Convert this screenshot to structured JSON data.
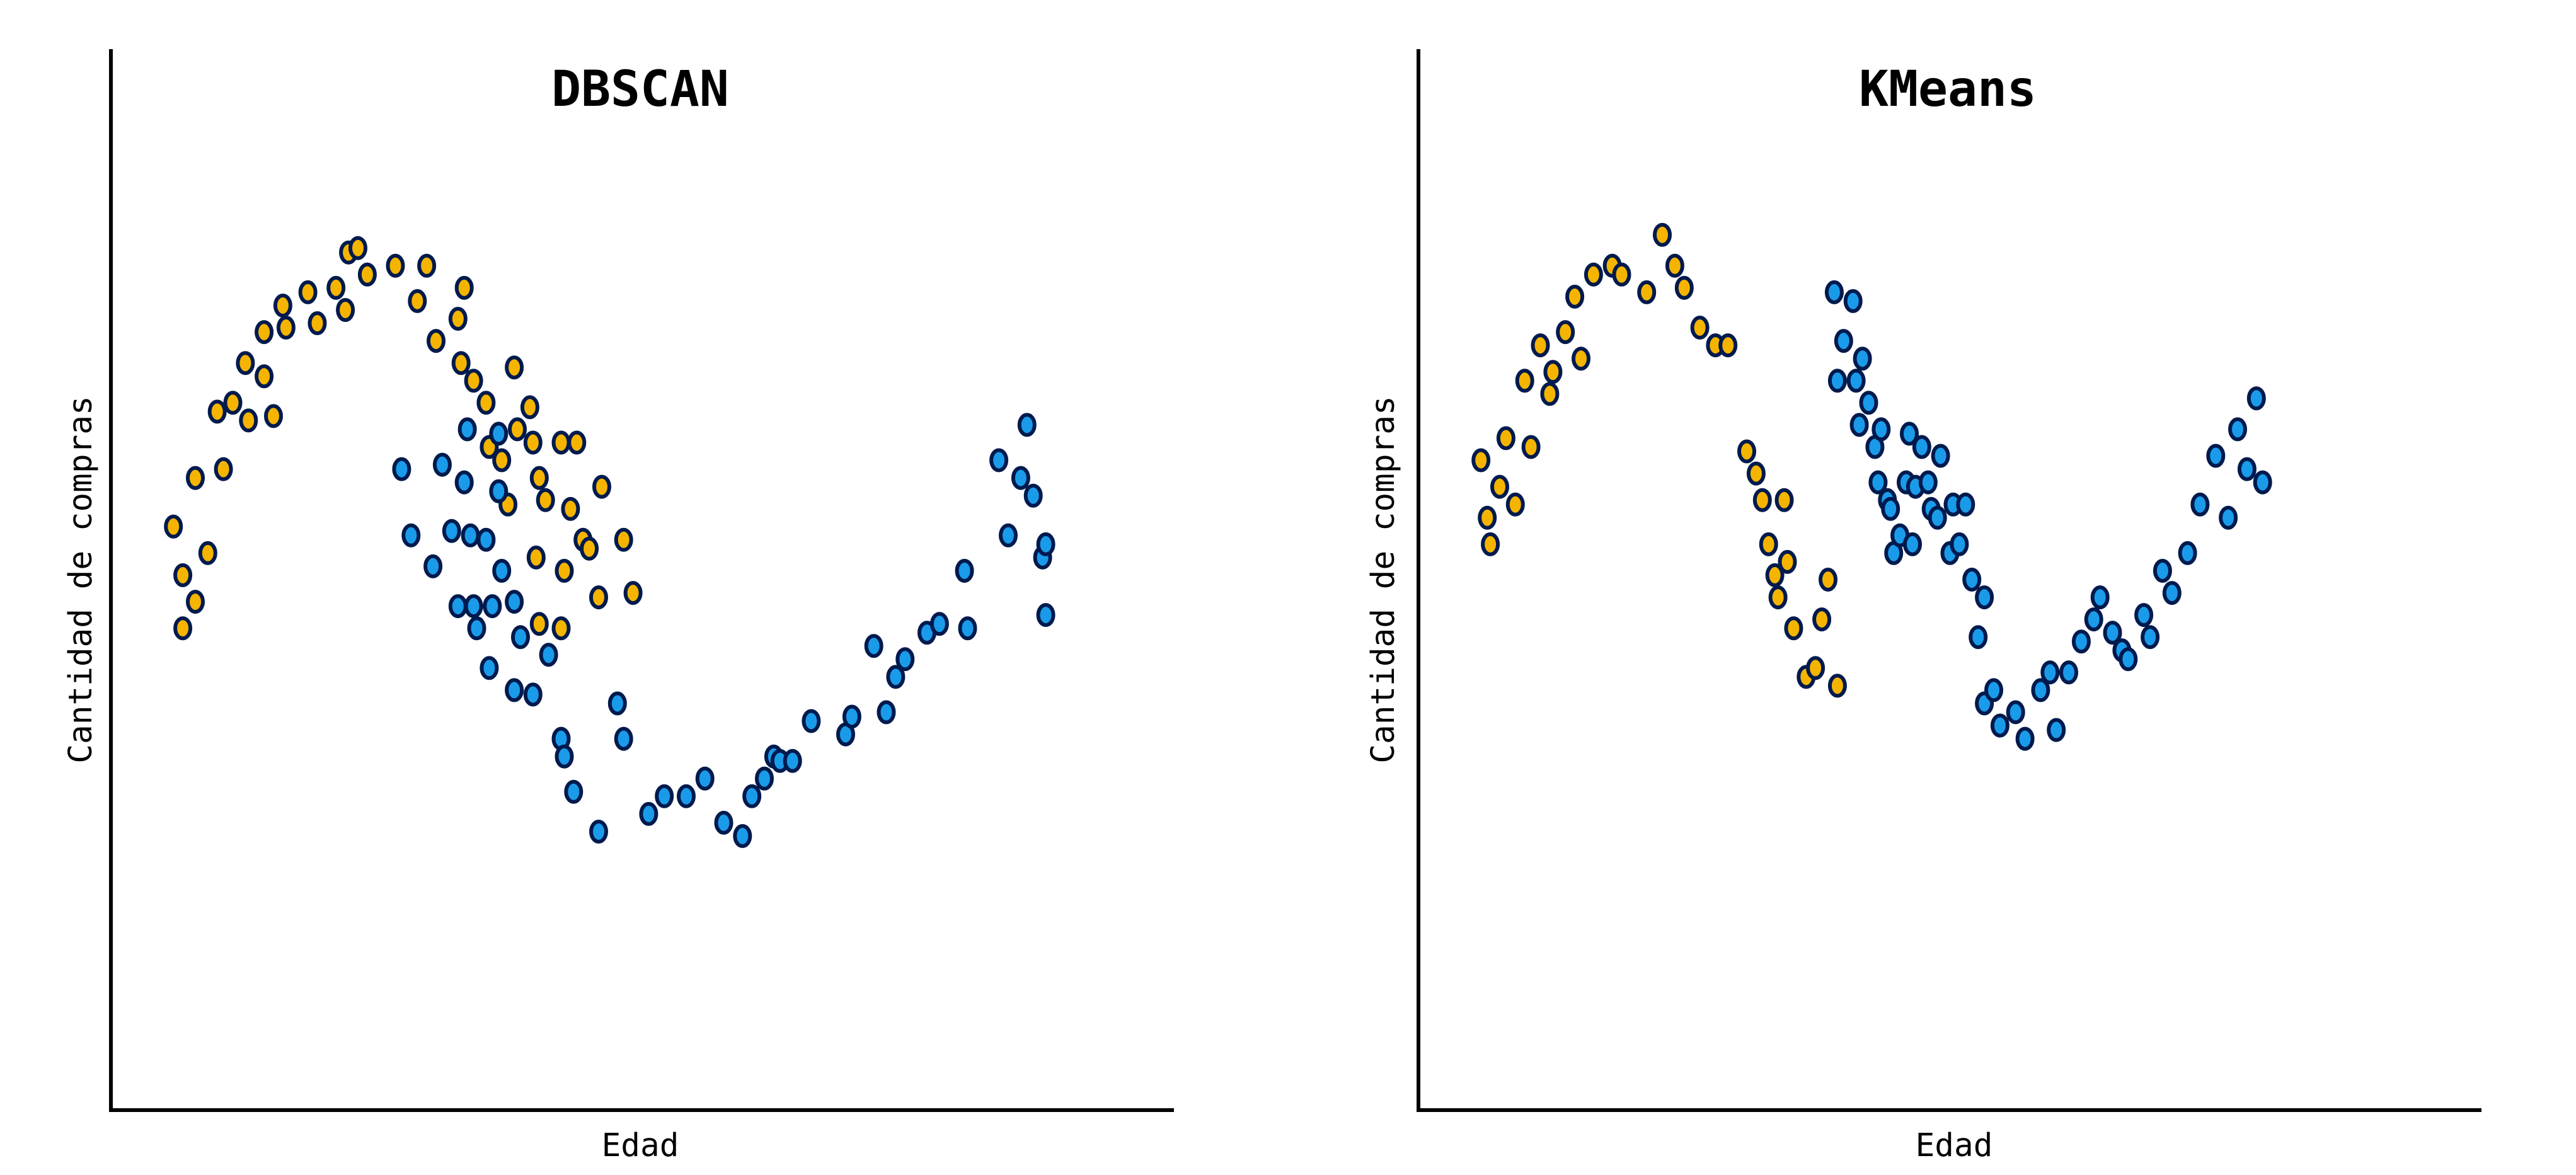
{
  "colors": {
    "cluster_a": "#f5b400",
    "cluster_b": "#1a9bea",
    "outline": "#001a4d"
  },
  "chart_data": [
    {
      "type": "scatter",
      "title": "DBSCAN",
      "xlabel": "Edad",
      "ylabel": "Cantidad de compras",
      "xlim": [
        -1.2,
        2.2
      ],
      "ylim": [
        -1.0,
        1.4
      ],
      "grid": false,
      "series": [
        {
          "color": "cluster_a",
          "points": [
            [
              -1.0,
              0.32
            ],
            [
              -0.97,
              0.21
            ],
            [
              -0.97,
              0.09
            ],
            [
              -0.93,
              0.43
            ],
            [
              -0.93,
              0.15
            ],
            [
              -0.89,
              0.26
            ],
            [
              -0.86,
              0.58
            ],
            [
              -0.84,
              0.45
            ],
            [
              -0.81,
              0.6
            ],
            [
              -0.77,
              0.69
            ],
            [
              -0.76,
              0.56
            ],
            [
              -0.71,
              0.66
            ],
            [
              -0.71,
              0.76
            ],
            [
              -0.68,
              0.57
            ],
            [
              -0.65,
              0.82
            ],
            [
              -0.64,
              0.77
            ],
            [
              -0.57,
              0.85
            ],
            [
              -0.54,
              0.78
            ],
            [
              -0.48,
              0.86
            ],
            [
              -0.44,
              0.94
            ],
            [
              -0.45,
              0.81
            ],
            [
              -0.41,
              0.95
            ],
            [
              -0.38,
              0.89
            ],
            [
              -0.29,
              0.91
            ],
            [
              -0.22,
              0.83
            ],
            [
              -0.19,
              0.91
            ],
            [
              -0.16,
              0.74
            ],
            [
              -0.09,
              0.79
            ],
            [
              -0.08,
              0.69
            ],
            [
              -0.07,
              0.86
            ],
            [
              -0.04,
              0.65
            ],
            [
              0.0,
              0.6
            ],
            [
              0.01,
              0.5
            ],
            [
              0.05,
              0.47
            ],
            [
              0.07,
              0.37
            ],
            [
              0.09,
              0.68
            ],
            [
              0.1,
              0.54
            ],
            [
              0.14,
              0.59
            ],
            [
              0.15,
              0.51
            ],
            [
              0.16,
              0.25
            ],
            [
              0.17,
              0.43
            ],
            [
              0.17,
              0.1
            ],
            [
              0.19,
              0.38
            ],
            [
              0.24,
              0.51
            ],
            [
              0.25,
              0.22
            ],
            [
              0.24,
              0.09
            ],
            [
              0.27,
              0.36
            ],
            [
              0.29,
              0.51
            ],
            [
              0.31,
              0.29
            ],
            [
              0.33,
              0.27
            ],
            [
              0.36,
              0.16
            ],
            [
              0.37,
              0.41
            ],
            [
              0.44,
              0.29
            ],
            [
              0.47,
              0.17
            ]
          ]
        },
        {
          "color": "cluster_b",
          "points": [
            [
              -0.27,
              0.45
            ],
            [
              -0.24,
              0.3
            ],
            [
              -0.17,
              0.23
            ],
            [
              -0.14,
              0.46
            ],
            [
              -0.11,
              0.31
            ],
            [
              -0.09,
              0.14
            ],
            [
              -0.07,
              0.42
            ],
            [
              -0.06,
              0.54
            ],
            [
              -0.05,
              0.3
            ],
            [
              -0.03,
              0.09
            ],
            [
              -0.04,
              0.14
            ],
            [
              0.02,
              0.14
            ],
            [
              0.04,
              0.4
            ],
            [
              0.0,
              0.29
            ],
            [
              0.01,
              0.0
            ],
            [
              0.04,
              0.53
            ],
            [
              0.05,
              0.22
            ],
            [
              0.09,
              -0.05
            ],
            [
              0.11,
              0.07
            ],
            [
              0.09,
              0.15
            ],
            [
              0.15,
              -0.06
            ],
            [
              0.2,
              0.03
            ],
            [
              0.24,
              -0.16
            ],
            [
              0.25,
              -0.2
            ],
            [
              0.28,
              -0.28
            ],
            [
              0.36,
              -0.37
            ],
            [
              0.42,
              -0.08
            ],
            [
              0.44,
              -0.16
            ],
            [
              0.52,
              -0.33
            ],
            [
              0.57,
              -0.29
            ],
            [
              0.64,
              -0.29
            ],
            [
              0.7,
              -0.25
            ],
            [
              0.76,
              -0.35
            ],
            [
              0.82,
              -0.38
            ],
            [
              0.85,
              -0.29
            ],
            [
              0.89,
              -0.25
            ],
            [
              0.92,
              -0.2
            ],
            [
              0.94,
              -0.21
            ],
            [
              0.98,
              -0.21
            ],
            [
              1.04,
              -0.12
            ],
            [
              1.15,
              -0.15
            ],
            [
              1.17,
              -0.11
            ],
            [
              1.24,
              0.05
            ],
            [
              1.28,
              -0.1
            ],
            [
              1.31,
              -0.02
            ],
            [
              1.34,
              0.02
            ],
            [
              1.41,
              0.08
            ],
            [
              1.45,
              0.1
            ],
            [
              1.53,
              0.22
            ],
            [
              1.54,
              0.09
            ],
            [
              1.64,
              0.47
            ],
            [
              1.67,
              0.3
            ],
            [
              1.71,
              0.43
            ],
            [
              1.73,
              0.55
            ],
            [
              1.75,
              0.39
            ],
            [
              1.78,
              0.25
            ],
            [
              1.79,
              0.12
            ],
            [
              1.79,
              0.28
            ]
          ]
        }
      ]
    },
    {
      "type": "scatter",
      "title": "KMeans",
      "xlabel": "Edad",
      "ylabel": "Cantidad de compras",
      "xlim": [
        -1.2,
        2.2
      ],
      "ylim": [
        -1.0,
        1.4
      ],
      "grid": false,
      "series": [
        {
          "color": "cluster_a",
          "points": [
            [
              -1.0,
              0.47
            ],
            [
              -0.98,
              0.34
            ],
            [
              -0.97,
              0.28
            ],
            [
              -0.94,
              0.41
            ],
            [
              -0.92,
              0.52
            ],
            [
              -0.89,
              0.37
            ],
            [
              -0.86,
              0.65
            ],
            [
              -0.84,
              0.5
            ],
            [
              -0.81,
              0.73
            ],
            [
              -0.78,
              0.62
            ],
            [
              -0.77,
              0.67
            ],
            [
              -0.73,
              0.76
            ],
            [
              -0.7,
              0.84
            ],
            [
              -0.68,
              0.7
            ],
            [
              -0.64,
              0.89
            ],
            [
              -0.58,
              0.91
            ],
            [
              -0.55,
              0.89
            ],
            [
              -0.47,
              0.85
            ],
            [
              -0.42,
              0.98
            ],
            [
              -0.38,
              0.91
            ],
            [
              -0.35,
              0.86
            ],
            [
              -0.3,
              0.77
            ],
            [
              -0.25,
              0.73
            ],
            [
              -0.21,
              0.73
            ],
            [
              -0.15,
              0.49
            ],
            [
              -0.12,
              0.44
            ],
            [
              -0.1,
              0.38
            ],
            [
              -0.08,
              0.28
            ],
            [
              -0.06,
              0.21
            ],
            [
              -0.05,
              0.16
            ],
            [
              -0.03,
              0.38
            ],
            [
              -0.02,
              0.24
            ],
            [
              0.0,
              0.09
            ],
            [
              0.04,
              -0.02
            ],
            [
              0.07,
              0.0
            ],
            [
              0.09,
              0.11
            ],
            [
              0.11,
              0.2
            ],
            [
              0.14,
              -0.04
            ]
          ]
        },
        {
          "color": "cluster_b",
          "points": [
            [
              0.13,
              0.85
            ],
            [
              0.14,
              0.65
            ],
            [
              0.16,
              0.74
            ],
            [
              0.19,
              0.83
            ],
            [
              0.2,
              0.65
            ],
            [
              0.21,
              0.55
            ],
            [
              0.22,
              0.7
            ],
            [
              0.24,
              0.6
            ],
            [
              0.26,
              0.5
            ],
            [
              0.27,
              0.42
            ],
            [
              0.28,
              0.54
            ],
            [
              0.3,
              0.38
            ],
            [
              0.31,
              0.36
            ],
            [
              0.32,
              0.26
            ],
            [
              0.34,
              0.3
            ],
            [
              0.36,
              0.42
            ],
            [
              0.37,
              0.53
            ],
            [
              0.38,
              0.28
            ],
            [
              0.39,
              0.41
            ],
            [
              0.41,
              0.5
            ],
            [
              0.43,
              0.42
            ],
            [
              0.44,
              0.36
            ],
            [
              0.46,
              0.34
            ],
            [
              0.47,
              0.48
            ],
            [
              0.5,
              0.26
            ],
            [
              0.51,
              0.37
            ],
            [
              0.53,
              0.28
            ],
            [
              0.55,
              0.37
            ],
            [
              0.57,
              0.2
            ],
            [
              0.59,
              0.07
            ],
            [
              0.61,
              0.16
            ],
            [
              0.61,
              -0.08
            ],
            [
              0.64,
              -0.05
            ],
            [
              0.66,
              -0.13
            ],
            [
              0.71,
              -0.1
            ],
            [
              0.74,
              -0.16
            ],
            [
              0.79,
              -0.05
            ],
            [
              0.82,
              -0.01
            ],
            [
              0.84,
              -0.14
            ],
            [
              0.88,
              -0.01
            ],
            [
              0.92,
              0.06
            ],
            [
              0.96,
              0.11
            ],
            [
              0.98,
              0.16
            ],
            [
              1.02,
              0.08
            ],
            [
              1.05,
              0.04
            ],
            [
              1.07,
              0.02
            ],
            [
              1.12,
              0.12
            ],
            [
              1.14,
              0.07
            ],
            [
              1.18,
              0.22
            ],
            [
              1.21,
              0.17
            ],
            [
              1.26,
              0.26
            ],
            [
              1.3,
              0.37
            ],
            [
              1.35,
              0.48
            ],
            [
              1.39,
              0.34
            ],
            [
              1.42,
              0.54
            ],
            [
              1.45,
              0.45
            ],
            [
              1.48,
              0.61
            ],
            [
              1.5,
              0.42
            ]
          ]
        }
      ]
    }
  ]
}
